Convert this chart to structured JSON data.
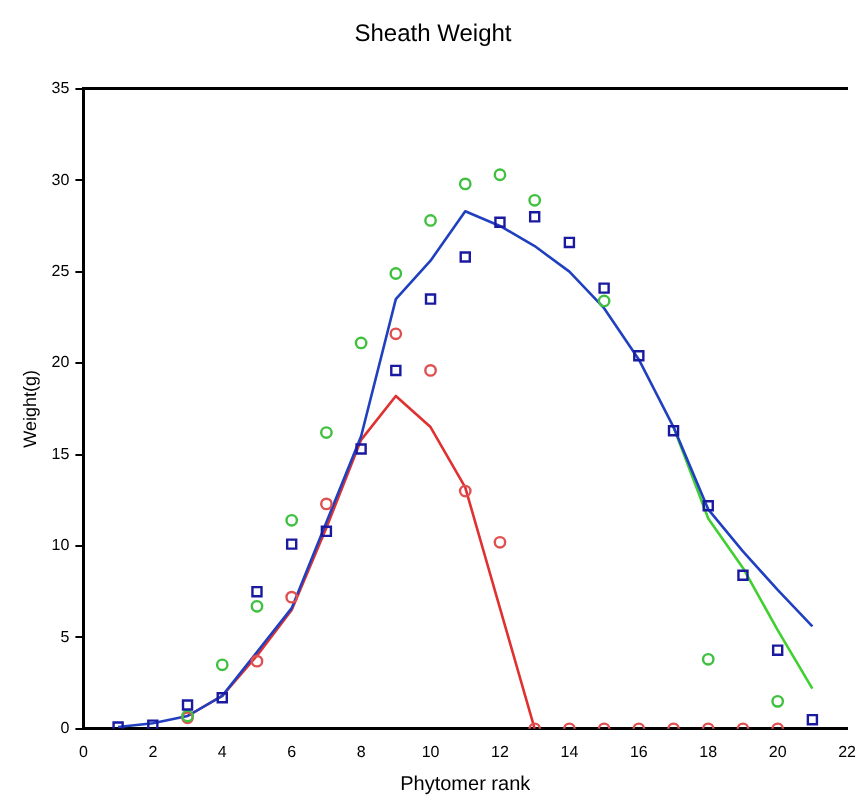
{
  "chart_data": {
    "type": "line",
    "title": "Sheath Weight",
    "xlabel": "Phytomer rank",
    "ylabel": "Weight(g)",
    "x": [
      1,
      2,
      3,
      4,
      5,
      6,
      7,
      8,
      9,
      10,
      11,
      12,
      13,
      14,
      15,
      16,
      17,
      18,
      19,
      20,
      21
    ],
    "series": [
      {
        "type": "line",
        "marker": "none",
        "color": "#e03030",
        "x": [
          3,
          4,
          5,
          6,
          7,
          8,
          9,
          10,
          11,
          12,
          13
        ],
        "values": [
          0.7,
          1.8,
          4.0,
          6.5,
          11.0,
          15.8,
          18.2,
          16.5,
          13.2,
          6.6,
          0
        ]
      },
      {
        "type": "line",
        "marker": "none",
        "color": "#40d030",
        "values": [
          null,
          null,
          null,
          null,
          null,
          null,
          null,
          null,
          null,
          null,
          null,
          null,
          null,
          null,
          null,
          null,
          16.5,
          11.5,
          8.8,
          5.4,
          2.2
        ]
      },
      {
        "type": "line",
        "marker": "none",
        "color": "#2040c0",
        "values": [
          0.1,
          0.3,
          0.7,
          1.8,
          4.2,
          6.6,
          11.3,
          16.0,
          23.5,
          25.6,
          28.3,
          27.5,
          26.4,
          25.0,
          23.0,
          20.2,
          16.5,
          12.0,
          9.7,
          7.6,
          5.6
        ]
      },
      {
        "type": "scatter",
        "marker": "circle",
        "color": "#e05050",
        "values": [
          null,
          null,
          0.6,
          null,
          3.7,
          7.2,
          12.3,
          null,
          21.6,
          19.6,
          13.0,
          10.2,
          0,
          0,
          0,
          0,
          0,
          0,
          0,
          0,
          null
        ]
      },
      {
        "type": "scatter",
        "marker": "circle",
        "color": "#40c040",
        "values": [
          null,
          null,
          0.7,
          3.5,
          6.7,
          11.4,
          16.2,
          21.1,
          24.9,
          27.8,
          29.8,
          30.3,
          28.9,
          null,
          23.4,
          null,
          null,
          3.8,
          null,
          1.5,
          null
        ]
      },
      {
        "type": "scatter",
        "marker": "square",
        "color": "#1a1aa0",
        "values": [
          0.1,
          0.2,
          1.3,
          1.7,
          7.5,
          10.1,
          10.8,
          15.3,
          19.6,
          23.5,
          25.8,
          27.7,
          28.0,
          26.6,
          24.1,
          20.4,
          16.3,
          12.2,
          8.4,
          4.3,
          0.5
        ]
      }
    ],
    "xlim": [
      0,
      22
    ],
    "xticks": [
      0,
      2,
      4,
      6,
      8,
      10,
      12,
      14,
      16,
      18,
      20,
      22
    ],
    "ylim": [
      0,
      35
    ],
    "yticks": [
      0,
      5,
      10,
      15,
      20,
      25,
      30,
      35
    ],
    "grid": false,
    "legend": false
  }
}
